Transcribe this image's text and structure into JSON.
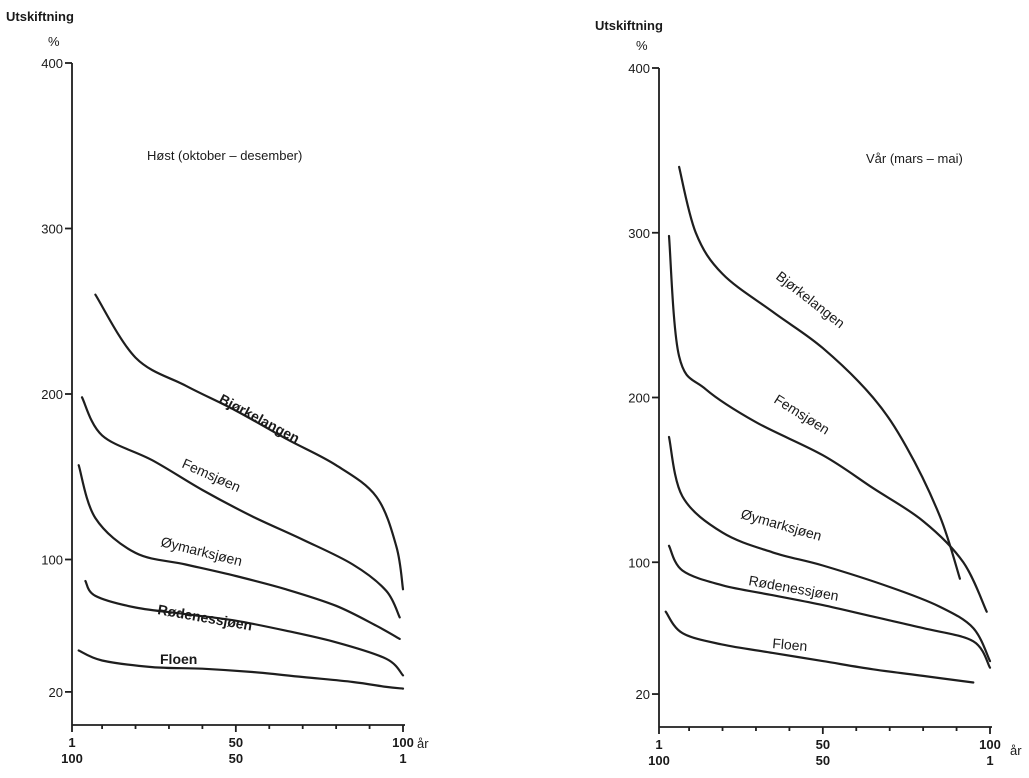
{
  "chart_data": [
    {
      "type": "line",
      "title": "Høst (oktober – desember)",
      "ylabel": "Utskiftning",
      "yunit": "%",
      "xunit": "år",
      "ylim": [
        0,
        400
      ],
      "xlim": [
        1,
        100
      ],
      "yticks": [
        {
          "value": 20,
          "label": "20"
        },
        {
          "value": 100,
          "label": "100"
        },
        {
          "value": 200,
          "label": "200"
        },
        {
          "value": 300,
          "label": "300"
        },
        {
          "value": 400,
          "label": "400"
        }
      ],
      "xticks": [
        {
          "value": 1,
          "top": "1",
          "bottom": "100"
        },
        {
          "value": 50,
          "top": "50",
          "bottom": "50"
        },
        {
          "value": 100,
          "top": "100",
          "bottom": "1"
        }
      ],
      "series": [
        {
          "name": "Bjørkelangen",
          "x": [
            8,
            20,
            35,
            50,
            65,
            80,
            92,
            98,
            100
          ],
          "y": [
            260,
            222,
            205,
            190,
            173,
            157,
            138,
            108,
            82
          ]
        },
        {
          "name": "Femsjøen",
          "x": [
            4,
            10,
            25,
            40,
            55,
            70,
            85,
            95,
            99
          ],
          "y": [
            198,
            175,
            160,
            142,
            126,
            112,
            97,
            81,
            65
          ]
        },
        {
          "name": "Øymarksjøen",
          "x": [
            3,
            8,
            20,
            35,
            50,
            65,
            80,
            92,
            99
          ],
          "y": [
            157,
            125,
            104,
            97,
            90,
            82,
            72,
            60,
            52
          ]
        },
        {
          "name": "Rødenessjøen",
          "x": [
            5,
            8,
            20,
            35,
            50,
            65,
            80,
            95,
            100
          ],
          "y": [
            87,
            78,
            71,
            67,
            63,
            57,
            50,
            40,
            30
          ]
        },
        {
          "name": "Floen",
          "x": [
            3,
            10,
            25,
            40,
            55,
            70,
            85,
            95,
            100
          ],
          "y": [
            45,
            39,
            35,
            34,
            32,
            29,
            26,
            23,
            22
          ]
        }
      ]
    },
    {
      "type": "line",
      "title": "Vår (mars – mai)",
      "ylabel": "Utskiftning",
      "yunit": "%",
      "xunit": "år",
      "ylim": [
        0,
        400
      ],
      "xlim": [
        1,
        100
      ],
      "yticks": [
        {
          "value": 20,
          "label": "20"
        },
        {
          "value": 100,
          "label": "100"
        },
        {
          "value": 200,
          "label": "200"
        },
        {
          "value": 300,
          "label": "300"
        },
        {
          "value": 400,
          "label": "400"
        }
      ],
      "xticks": [
        {
          "value": 1,
          "top": "1",
          "bottom": "100"
        },
        {
          "value": 50,
          "top": "50",
          "bottom": "50"
        },
        {
          "value": 100,
          "top": "100",
          "bottom": "1"
        }
      ],
      "series": [
        {
          "name": "Bjørkelangen",
          "x": [
            7,
            12,
            20,
            35,
            50,
            65,
            75,
            85,
            91
          ],
          "y": [
            340,
            300,
            275,
            252,
            230,
            200,
            170,
            128,
            90
          ]
        },
        {
          "name": "Femsjøen",
          "x": [
            4,
            7,
            15,
            30,
            50,
            65,
            80,
            92,
            99
          ],
          "y": [
            298,
            225,
            205,
            185,
            165,
            145,
            125,
            100,
            70
          ]
        },
        {
          "name": "Øymarksjøen",
          "x": [
            4,
            8,
            20,
            35,
            50,
            70,
            85,
            95,
            100
          ],
          "y": [
            176,
            140,
            118,
            106,
            98,
            85,
            73,
            60,
            40
          ]
        },
        {
          "name": "Rødenessjøen",
          "x": [
            4,
            8,
            20,
            35,
            50,
            65,
            80,
            95,
            100
          ],
          "y": [
            110,
            95,
            86,
            80,
            74,
            67,
            60,
            52,
            36
          ]
        },
        {
          "name": "Floen",
          "x": [
            3,
            8,
            20,
            35,
            50,
            65,
            80,
            95
          ],
          "y": [
            70,
            57,
            50,
            45,
            40,
            35,
            31,
            27
          ]
        }
      ]
    }
  ]
}
